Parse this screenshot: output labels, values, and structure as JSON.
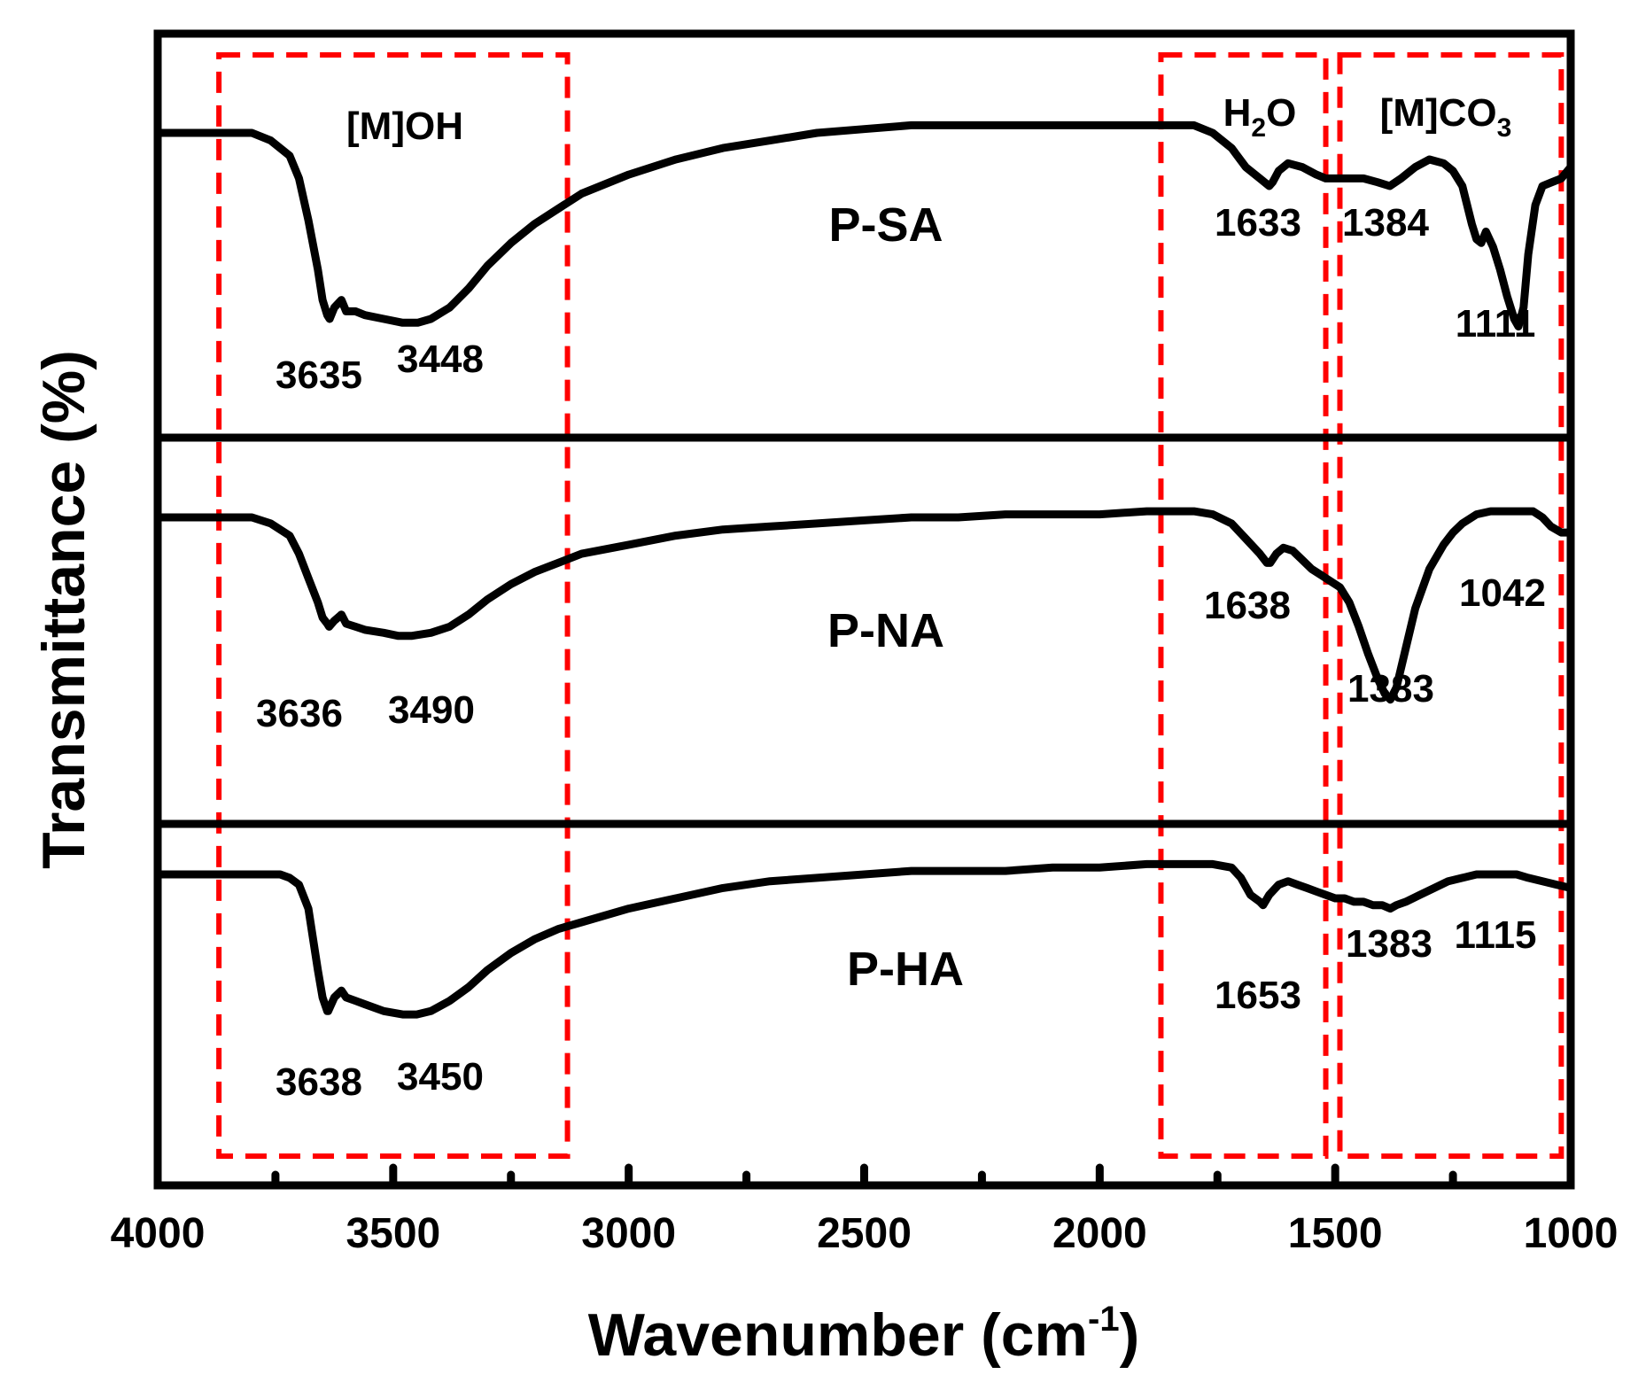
{
  "chart_data": {
    "type": "line",
    "title": "",
    "xlabel": "Wavenumber (cm",
    "xlabel_sup": "-1",
    "xlabel_close": ")",
    "ylabel": "Transmittance (%)",
    "xlim": [
      4000,
      1000
    ],
    "x_reversed": true,
    "x_ticks": [
      4000,
      3500,
      3000,
      2500,
      2000,
      1500,
      1000
    ],
    "x_minor_ticks": [
      3750,
      3250,
      2750,
      2250,
      1750,
      1250
    ],
    "y_ticks": [],
    "grid": false,
    "legend": "none",
    "series": [
      {
        "name": "P-SA",
        "x": [
          4000,
          3900,
          3800,
          3760,
          3720,
          3700,
          3680,
          3660,
          3650,
          3640,
          3635,
          3625,
          3610,
          3600,
          3580,
          3560,
          3520,
          3480,
          3448,
          3420,
          3380,
          3340,
          3300,
          3250,
          3200,
          3150,
          3100,
          3000,
          2900,
          2800,
          2700,
          2600,
          2500,
          2400,
          2300,
          2200,
          2100,
          2000,
          1900,
          1850,
          1800,
          1760,
          1720,
          1690,
          1660,
          1640,
          1633,
          1620,
          1600,
          1570,
          1540,
          1520,
          1500,
          1470,
          1440,
          1410,
          1384,
          1360,
          1330,
          1300,
          1270,
          1250,
          1230,
          1210,
          1200,
          1190,
          1180,
          1165,
          1150,
          1135,
          1120,
          1111,
          1100,
          1090,
          1075,
          1060,
          1040,
          1020,
          1000
        ],
        "values": [
          88,
          88,
          88,
          86,
          82,
          76,
          65,
          52,
          44,
          40,
          39,
          42,
          44,
          41,
          41,
          40,
          39,
          38,
          38,
          39,
          42,
          47,
          53,
          59,
          64,
          68,
          72,
          77,
          81,
          84,
          86,
          88,
          89,
          90,
          90,
          90,
          90,
          90,
          90,
          90,
          90,
          88,
          84,
          79,
          76,
          74,
          75,
          78,
          80,
          79,
          77,
          76,
          76,
          76,
          76,
          75,
          74,
          76,
          79,
          81,
          80,
          78,
          74,
          64,
          60,
          59,
          62,
          58,
          52,
          45,
          39,
          37,
          42,
          56,
          69,
          74,
          75,
          76,
          79
        ]
      },
      {
        "name": "P-NA",
        "x": [
          4000,
          3900,
          3800,
          3760,
          3720,
          3700,
          3680,
          3660,
          3650,
          3640,
          3636,
          3625,
          3610,
          3600,
          3580,
          3560,
          3520,
          3490,
          3460,
          3420,
          3380,
          3340,
          3300,
          3250,
          3200,
          3150,
          3100,
          3000,
          2900,
          2800,
          2700,
          2600,
          2500,
          2400,
          2300,
          2200,
          2100,
          2000,
          1900,
          1850,
          1800,
          1760,
          1720,
          1690,
          1660,
          1645,
          1638,
          1625,
          1610,
          1590,
          1570,
          1550,
          1530,
          1510,
          1490,
          1470,
          1450,
          1430,
          1410,
          1395,
          1383,
          1370,
          1350,
          1330,
          1300,
          1270,
          1250,
          1230,
          1200,
          1170,
          1140,
          1110,
          1080,
          1060,
          1042,
          1020,
          1000
        ],
        "values": [
          88,
          88,
          88,
          86,
          82,
          76,
          68,
          60,
          55,
          53,
          52,
          54,
          56,
          53,
          52,
          51,
          50,
          49,
          49,
          50,
          52,
          56,
          61,
          66,
          70,
          73,
          76,
          79,
          82,
          84,
          85,
          86,
          87,
          88,
          88,
          89,
          89,
          89,
          90,
          90,
          90,
          89,
          86,
          81,
          76,
          73,
          73,
          76,
          78,
          77,
          74,
          71,
          69,
          67,
          65,
          60,
          52,
          43,
          35,
          30,
          28,
          32,
          45,
          58,
          71,
          79,
          83,
          86,
          89,
          90,
          90,
          90,
          90,
          88,
          85,
          83,
          83
        ]
      },
      {
        "name": "P-HA",
        "x": [
          4000,
          3900,
          3800,
          3760,
          3740,
          3720,
          3700,
          3680,
          3660,
          3650,
          3640,
          3638,
          3625,
          3610,
          3600,
          3580,
          3560,
          3520,
          3480,
          3450,
          3420,
          3380,
          3340,
          3300,
          3250,
          3200,
          3150,
          3100,
          3000,
          2900,
          2800,
          2700,
          2600,
          2500,
          2400,
          2300,
          2200,
          2100,
          2000,
          1900,
          1850,
          1800,
          1760,
          1720,
          1700,
          1680,
          1660,
          1653,
          1640,
          1620,
          1600,
          1580,
          1560,
          1540,
          1520,
          1500,
          1480,
          1460,
          1440,
          1420,
          1400,
          1383,
          1370,
          1350,
          1320,
          1290,
          1260,
          1230,
          1200,
          1170,
          1140,
          1115,
          1090,
          1060,
          1030,
          1000
        ],
        "values": [
          88,
          88,
          88,
          88,
          88,
          87,
          85,
          78,
          60,
          52,
          48,
          48,
          52,
          54,
          52,
          51,
          50,
          48,
          47,
          47,
          48,
          51,
          55,
          60,
          65,
          69,
          72,
          74,
          78,
          81,
          84,
          86,
          87,
          88,
          89,
          89,
          89,
          90,
          90,
          91,
          91,
          91,
          91,
          90,
          87,
          82,
          80,
          79,
          82,
          85,
          86,
          85,
          84,
          83,
          82,
          81,
          81,
          80,
          80,
          79,
          79,
          78,
          79,
          80,
          82,
          84,
          86,
          87,
          88,
          88,
          88,
          88,
          87,
          86,
          85,
          84
        ]
      }
    ],
    "series_labels": [
      "P-SA",
      "P-NA",
      "P-HA"
    ],
    "annotations": [
      {
        "series": "P-SA",
        "peaks": [
          "3635",
          "3448",
          "1633",
          "1384",
          "1111"
        ]
      },
      {
        "series": "P-NA",
        "peaks": [
          "3636",
          "3490",
          "1638",
          "1383",
          "1042"
        ]
      },
      {
        "series": "P-HA",
        "peaks": [
          "3638",
          "3450",
          "1653",
          "1383",
          "1115"
        ]
      }
    ],
    "regions": [
      {
        "label": "[M]OH",
        "x_range": [
          3870,
          3130
        ]
      },
      {
        "label": "H",
        "label_sub": "2",
        "label_tail": "O",
        "x_range": [
          1870,
          1520
        ]
      },
      {
        "label": "[M]CO",
        "label_sub": "3",
        "label_tail": "",
        "x_range": [
          1490,
          1020
        ]
      }
    ]
  },
  "colors": {
    "trace": "#000000",
    "region_border": "#ff0000",
    "background": "#ffffff"
  }
}
